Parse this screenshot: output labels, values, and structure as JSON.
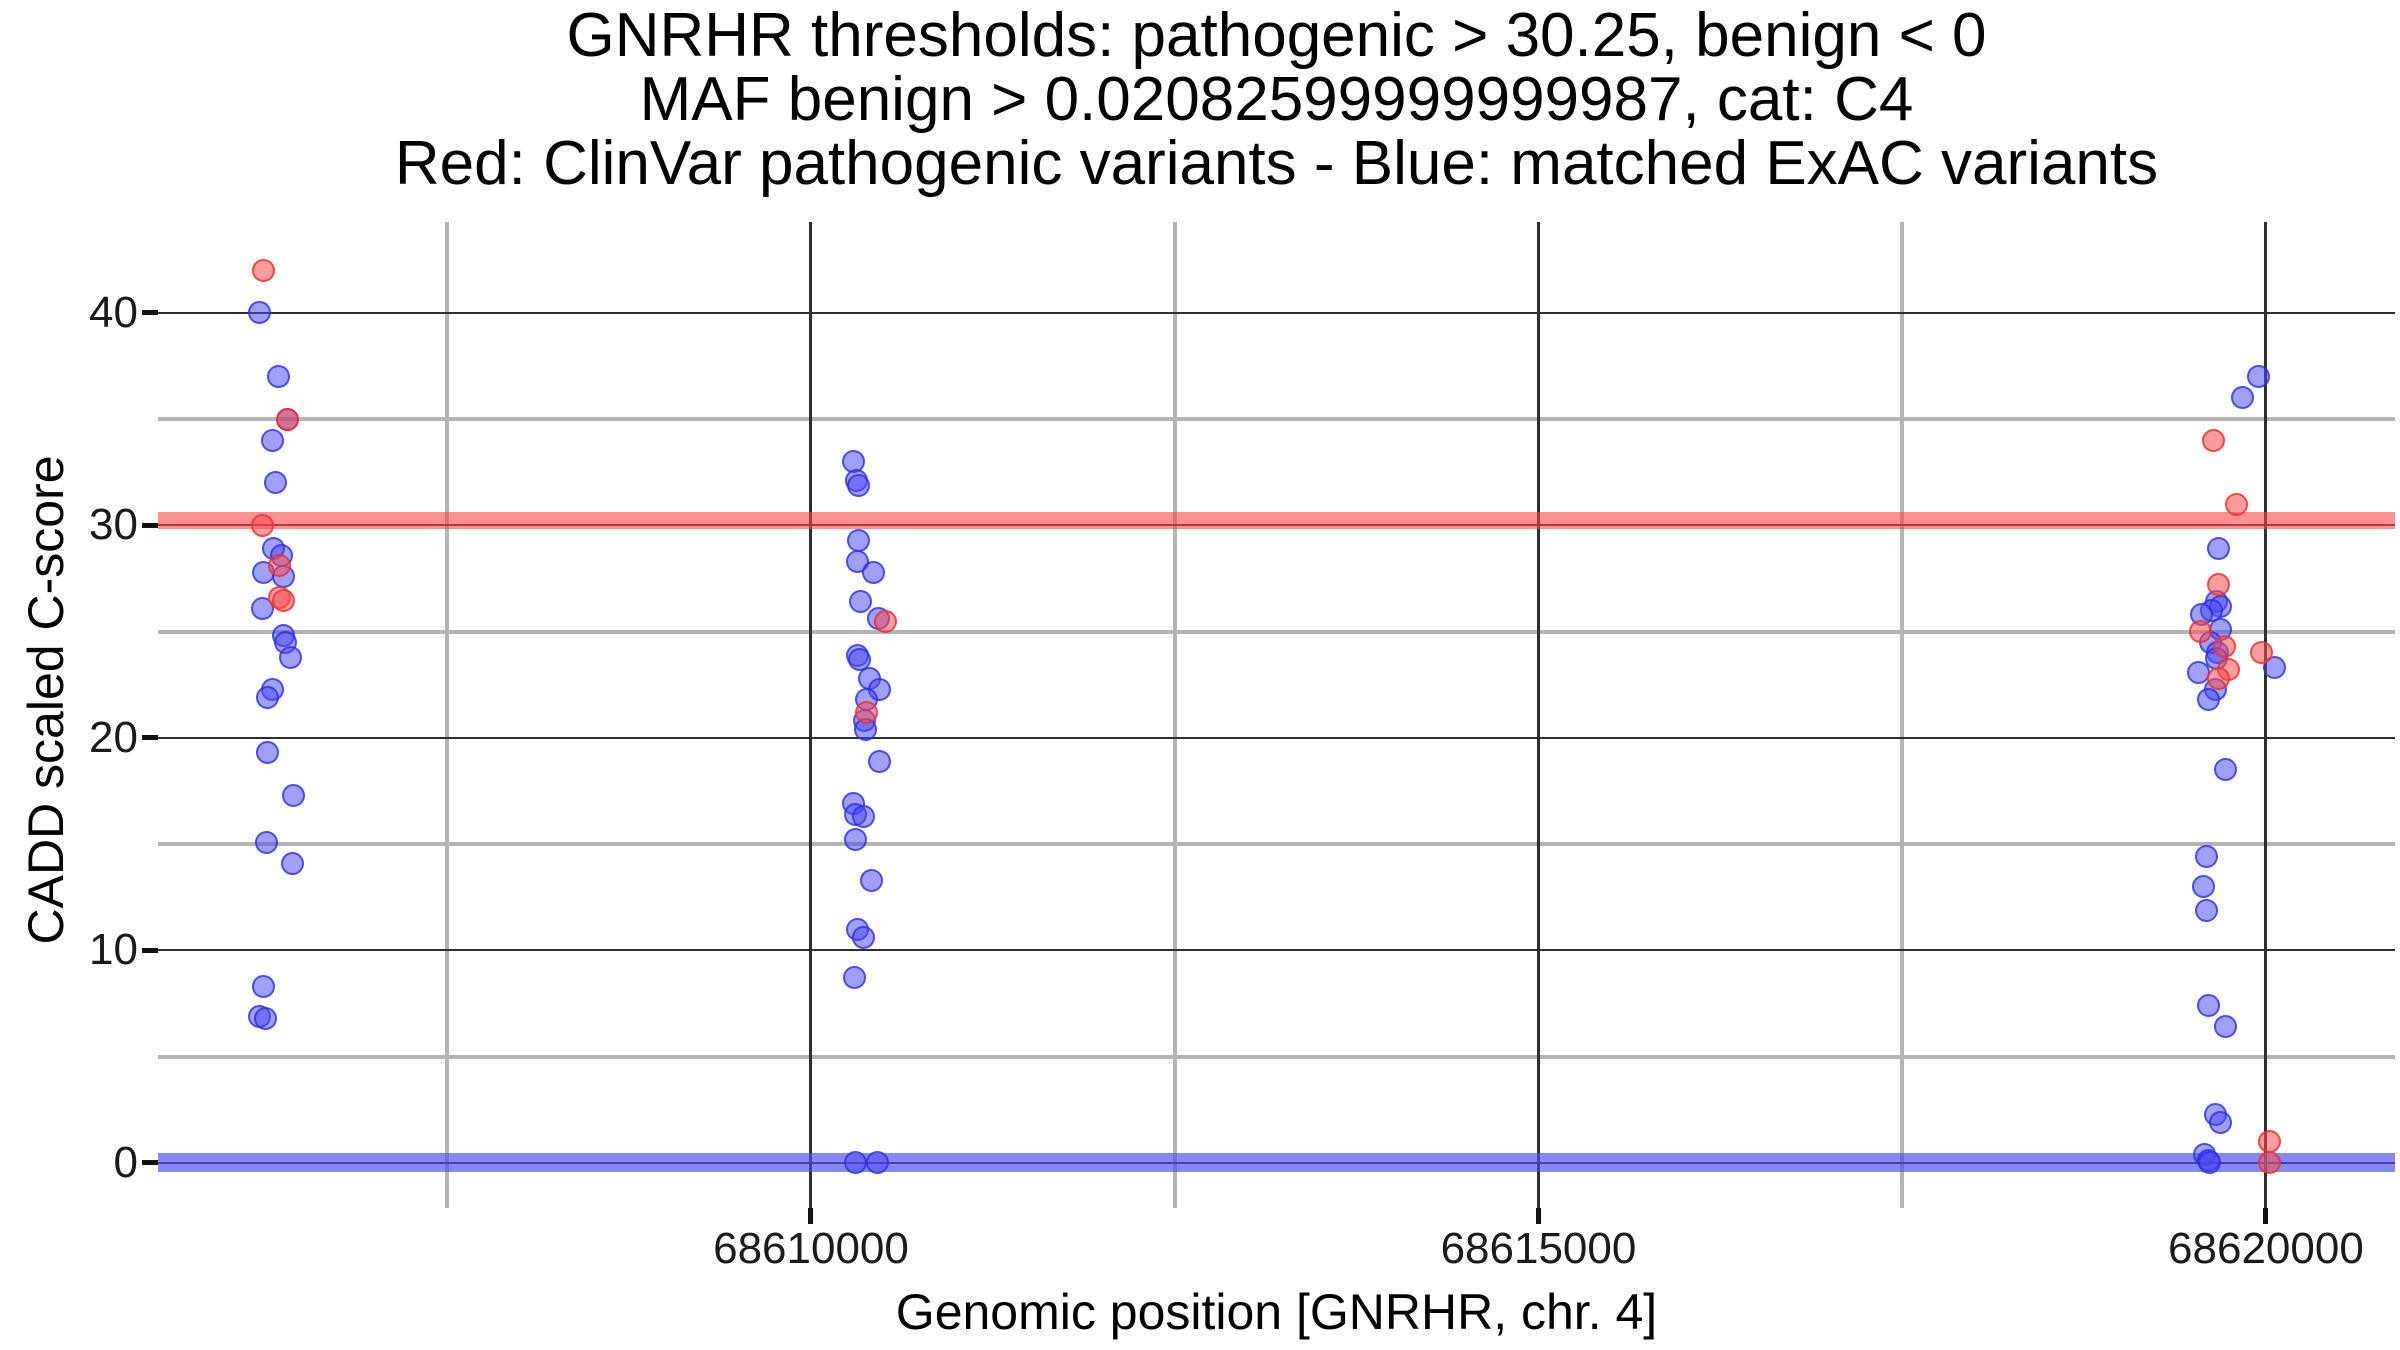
{
  "title": {
    "line1": "GNRHR thresholds: pathogenic > 30.25, benign < 0",
    "line2": "MAF benign > 0.02082599999999987, cat: C4",
    "line3": "Red: ClinVar pathogenic variants - Blue: matched ExAC variants"
  },
  "colors": {
    "red_point_fill": "#fa4e4e8f",
    "red_point_stroke": "#e62f2fc4",
    "blue_point_fill": "#4848f285",
    "blue_point_stroke": "#2a2ae1b8",
    "pathogenic_band": "#f7464699",
    "benign_band": "#4d4deeaa",
    "major_gridline": "#2e2e2e",
    "minor_gridline": "#b4b4b4",
    "tick_mark": "#111111"
  },
  "chart_data": {
    "type": "scatter",
    "title": "GNRHR thresholds: pathogenic > 30.25, benign < 0 / MAF benign > 0.02082599999999987, cat: C4",
    "xlabel": "Genomic position [GNRHR, chr. 4]",
    "ylabel": "CADD scaled C-score",
    "grid": true,
    "legend_position": "none",
    "x_axis": {
      "range": [
        68605512,
        68620887
      ],
      "major_ticks": [
        {
          "value": 68610000,
          "label": "68610000"
        },
        {
          "value": 68615000,
          "label": "68615000"
        },
        {
          "value": 68620000,
          "label": "68620000"
        }
      ],
      "minor_ticks": [
        68607500,
        68612500,
        68617500
      ]
    },
    "y_axis": {
      "range": [
        -2.12,
        44.28
      ],
      "major_ticks": [
        {
          "value": 0,
          "label": "0"
        },
        {
          "value": 10,
          "label": "10"
        },
        {
          "value": 20,
          "label": "20"
        },
        {
          "value": 30,
          "label": "30"
        },
        {
          "value": 40,
          "label": "40"
        }
      ],
      "minor_ticks": [
        5,
        15,
        25,
        35
      ]
    },
    "threshold_lines": [
      {
        "name": "pathogenic-threshold",
        "value": 30.25,
        "color": "#f7464699",
        "thickness_px": 17
      },
      {
        "name": "benign-threshold",
        "value": 0,
        "color": "#4d4deeaa",
        "thickness_px": 19
      }
    ],
    "series": [
      {
        "name": "ClinVar pathogenic variants",
        "color": "#fa4e4e8f",
        "stroke": "#e62f2fc4",
        "points": [
          [
            68606234,
            42.0
          ],
          [
            68606399,
            35.0
          ],
          [
            68606227,
            30.0
          ],
          [
            68606344,
            28.1
          ],
          [
            68606344,
            26.6
          ],
          [
            68606378,
            26.45
          ],
          [
            68610509,
            25.5
          ],
          [
            68610379,
            21.2
          ],
          [
            68619638,
            34.0
          ],
          [
            68619796,
            31.0
          ],
          [
            68619672,
            27.2
          ],
          [
            68619549,
            25.0
          ],
          [
            68619714,
            24.3
          ],
          [
            68619968,
            24.0
          ],
          [
            68619741,
            23.2
          ],
          [
            68619672,
            22.8
          ],
          [
            68620023,
            1.0
          ],
          [
            68620023,
            0.0
          ]
        ]
      },
      {
        "name": "matched ExAC variants",
        "color": "#4848f285",
        "stroke": "#2a2ae1b8",
        "points": [
          [
            68606213,
            40.0
          ],
          [
            68606337,
            37.0
          ],
          [
            68606399,
            35.0
          ],
          [
            68606296,
            34.0
          ],
          [
            68606323,
            32.0
          ],
          [
            68606309,
            28.9
          ],
          [
            68606358,
            28.6
          ],
          [
            68606234,
            27.8
          ],
          [
            68606378,
            27.6
          ],
          [
            68606227,
            26.1
          ],
          [
            68606378,
            24.8
          ],
          [
            68606385,
            24.5
          ],
          [
            68606426,
            23.8
          ],
          [
            68606296,
            22.3
          ],
          [
            68606268,
            21.9
          ],
          [
            68606268,
            19.3
          ],
          [
            68606440,
            17.3
          ],
          [
            68606261,
            15.1
          ],
          [
            68606433,
            14.1
          ],
          [
            68606234,
            8.3
          ],
          [
            68606213,
            6.9
          ],
          [
            68606254,
            6.8
          ],
          [
            68610289,
            33.0
          ],
          [
            68610310,
            32.1
          ],
          [
            68610324,
            31.9
          ],
          [
            68610330,
            29.3
          ],
          [
            68610317,
            28.3
          ],
          [
            68610427,
            27.8
          ],
          [
            68610337,
            26.4
          ],
          [
            68610461,
            25.6
          ],
          [
            68610317,
            23.9
          ],
          [
            68610331,
            23.7
          ],
          [
            68610399,
            22.8
          ],
          [
            68610468,
            22.3
          ],
          [
            68610379,
            21.8
          ],
          [
            68610365,
            20.8
          ],
          [
            68610372,
            20.4
          ],
          [
            68610468,
            18.9
          ],
          [
            68610289,
            16.9
          ],
          [
            68610303,
            16.4
          ],
          [
            68610358,
            16.3
          ],
          [
            68610303,
            15.2
          ],
          [
            68610413,
            13.3
          ],
          [
            68610317,
            11.0
          ],
          [
            68610358,
            10.6
          ],
          [
            68610296,
            8.75
          ],
          [
            68610303,
            0.0
          ],
          [
            68610454,
            0.0
          ],
          [
            68619947,
            37.0
          ],
          [
            68619837,
            36.0
          ],
          [
            68619672,
            28.9
          ],
          [
            68619659,
            26.4
          ],
          [
            68619686,
            26.2
          ],
          [
            68619624,
            26.0
          ],
          [
            68619556,
            25.8
          ],
          [
            68619686,
            25.1
          ],
          [
            68619617,
            24.5
          ],
          [
            68619666,
            24.0
          ],
          [
            68619659,
            23.75
          ],
          [
            68620058,
            23.3
          ],
          [
            68619535,
            23.1
          ],
          [
            68619652,
            22.3
          ],
          [
            68619604,
            21.8
          ],
          [
            68619721,
            18.5
          ],
          [
            68619590,
            14.4
          ],
          [
            68619569,
            13.0
          ],
          [
            68619590,
            11.9
          ],
          [
            68619604,
            7.4
          ],
          [
            68619721,
            6.4
          ],
          [
            68619652,
            2.3
          ],
          [
            68619690,
            1.9
          ],
          [
            68619576,
            0.4
          ],
          [
            68619604,
            0.1
          ],
          [
            68619611,
            0.0
          ]
        ]
      }
    ]
  }
}
